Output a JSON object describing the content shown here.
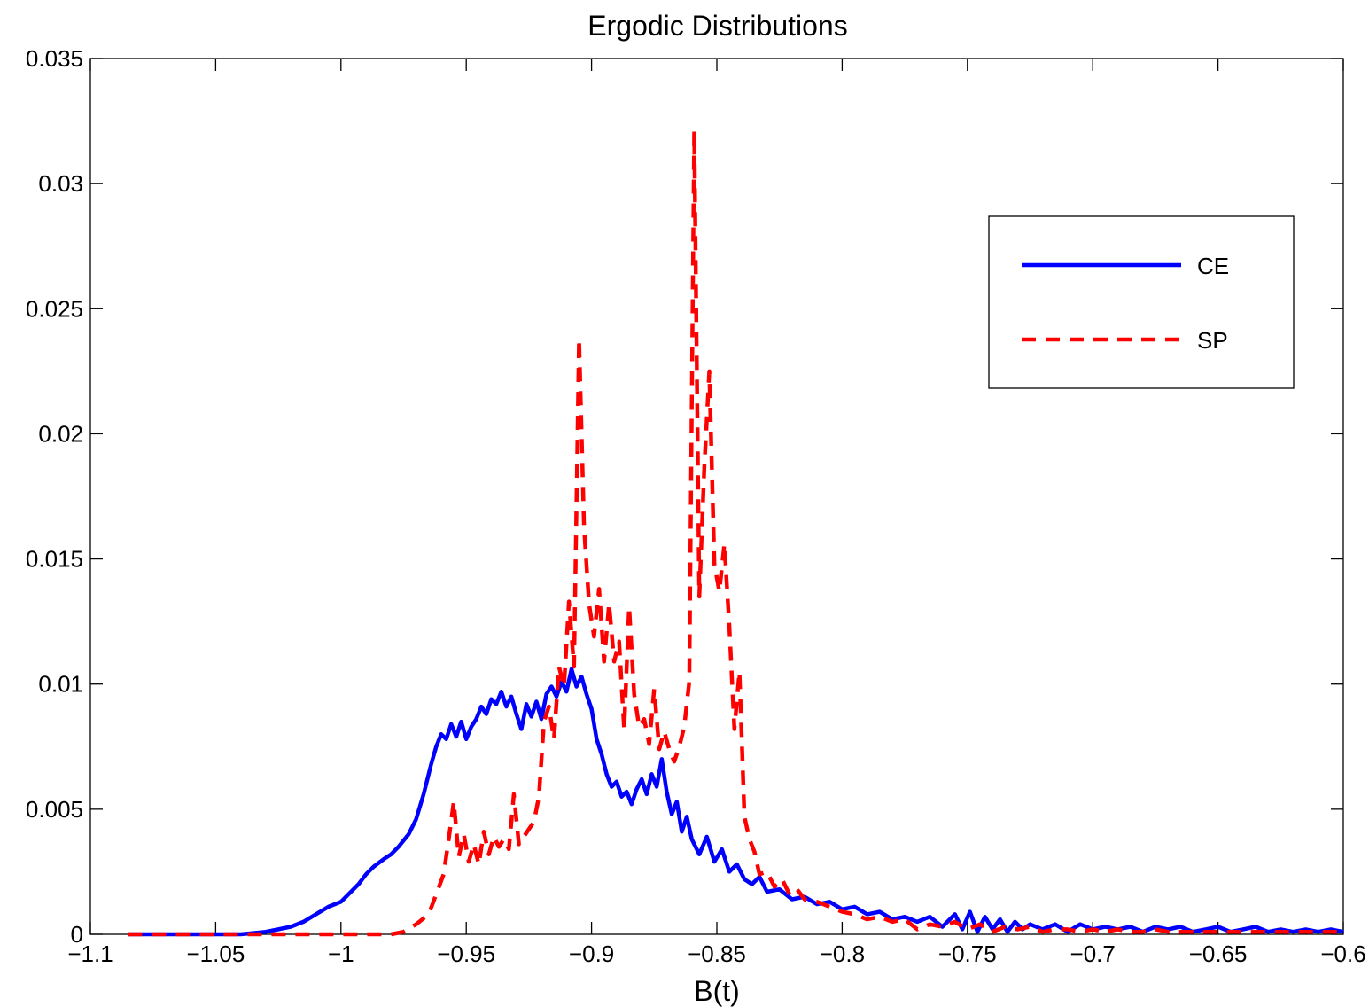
{
  "chart_data": {
    "type": "line",
    "title": "Ergodic Distributions",
    "xlabel": "B(t)",
    "ylabel": "",
    "xlim": [
      -1.1,
      -0.6
    ],
    "ylim": [
      0,
      0.035
    ],
    "xticks": [
      -1.1,
      -1.05,
      -1,
      -0.95,
      -0.9,
      -0.85,
      -0.8,
      -0.75,
      -0.7,
      -0.65,
      -0.6
    ],
    "xtick_labels": [
      "−1.1",
      "−1.05",
      "−1",
      "−0.95",
      "−0.9",
      "−0.85",
      "−0.8",
      "−0.75",
      "−0.7",
      "−0.65",
      "−0.6"
    ],
    "yticks": [
      0,
      0.005,
      0.01,
      0.015,
      0.02,
      0.025,
      0.03,
      0.035
    ],
    "ytick_labels": [
      "0",
      "0.005",
      "0.01",
      "0.015",
      "0.02",
      "0.025",
      "0.03",
      "0.035"
    ],
    "grid": false,
    "legend_position": "top-right",
    "series": [
      {
        "name": "CE",
        "color": "#0000ff",
        "style": "solid",
        "x": [
          -1.085,
          -1.06,
          -1.04,
          -1.03,
          -1.02,
          -1.015,
          -1.01,
          -1.005,
          -1.0,
          -0.997,
          -0.993,
          -0.99,
          -0.987,
          -0.983,
          -0.98,
          -0.977,
          -0.973,
          -0.97,
          -0.967,
          -0.964,
          -0.962,
          -0.96,
          -0.958,
          -0.956,
          -0.954,
          -0.952,
          -0.95,
          -0.948,
          -0.946,
          -0.944,
          -0.942,
          -0.94,
          -0.938,
          -0.936,
          -0.934,
          -0.932,
          -0.93,
          -0.928,
          -0.926,
          -0.924,
          -0.922,
          -0.92,
          -0.918,
          -0.916,
          -0.914,
          -0.912,
          -0.91,
          -0.908,
          -0.906,
          -0.904,
          -0.902,
          -0.9,
          -0.898,
          -0.896,
          -0.894,
          -0.892,
          -0.89,
          -0.888,
          -0.886,
          -0.884,
          -0.882,
          -0.88,
          -0.878,
          -0.876,
          -0.874,
          -0.872,
          -0.87,
          -0.868,
          -0.866,
          -0.864,
          -0.862,
          -0.86,
          -0.857,
          -0.854,
          -0.851,
          -0.848,
          -0.845,
          -0.842,
          -0.839,
          -0.836,
          -0.833,
          -0.83,
          -0.825,
          -0.82,
          -0.815,
          -0.81,
          -0.805,
          -0.8,
          -0.795,
          -0.79,
          -0.785,
          -0.78,
          -0.775,
          -0.77,
          -0.765,
          -0.76,
          -0.755,
          -0.752,
          -0.749,
          -0.746,
          -0.743,
          -0.74,
          -0.737,
          -0.734,
          -0.731,
          -0.728,
          -0.725,
          -0.72,
          -0.715,
          -0.71,
          -0.705,
          -0.7,
          -0.695,
          -0.69,
          -0.685,
          -0.68,
          -0.675,
          -0.67,
          -0.665,
          -0.66,
          -0.655,
          -0.65,
          -0.645,
          -0.64,
          -0.635,
          -0.63,
          -0.625,
          -0.62,
          -0.615,
          -0.61,
          -0.605,
          -0.6
        ],
        "y": [
          0.0,
          0.0,
          0.0,
          0.0001,
          0.0003,
          0.0005,
          0.0008,
          0.0011,
          0.0013,
          0.0016,
          0.002,
          0.0024,
          0.0027,
          0.003,
          0.0032,
          0.0035,
          0.004,
          0.0046,
          0.0056,
          0.0068,
          0.0075,
          0.008,
          0.0078,
          0.0084,
          0.0079,
          0.0085,
          0.0078,
          0.0083,
          0.0086,
          0.0091,
          0.0088,
          0.0094,
          0.0092,
          0.0097,
          0.0091,
          0.0095,
          0.0088,
          0.0082,
          0.0092,
          0.0087,
          0.0093,
          0.0086,
          0.0096,
          0.0099,
          0.0095,
          0.0101,
          0.0097,
          0.0106,
          0.0099,
          0.0103,
          0.0096,
          0.009,
          0.0078,
          0.0072,
          0.0064,
          0.0059,
          0.0061,
          0.0055,
          0.0057,
          0.0052,
          0.0058,
          0.0062,
          0.0056,
          0.0064,
          0.0059,
          0.007,
          0.0057,
          0.0048,
          0.0053,
          0.0041,
          0.0047,
          0.0038,
          0.0032,
          0.0039,
          0.0029,
          0.0034,
          0.0025,
          0.0028,
          0.0022,
          0.002,
          0.0023,
          0.0017,
          0.0018,
          0.0014,
          0.0015,
          0.0012,
          0.0013,
          0.001,
          0.0011,
          0.0008,
          0.0009,
          0.0006,
          0.0007,
          0.0005,
          0.0007,
          0.0003,
          0.0008,
          0.0002,
          0.0009,
          0.0001,
          0.0007,
          0.0002,
          0.0006,
          0.0001,
          0.0005,
          0.0002,
          0.0004,
          0.0002,
          0.0004,
          0.0001,
          0.0004,
          0.0002,
          0.0003,
          0.0002,
          0.0003,
          0.0001,
          0.0003,
          0.0002,
          0.0003,
          0.0001,
          0.0002,
          0.0003,
          0.0001,
          0.0002,
          0.0003,
          0.0001,
          0.0002,
          0.0001,
          0.0002,
          0.0001,
          0.0002,
          0.0001
        ]
      },
      {
        "name": "SP",
        "color": "#ff0000",
        "style": "dashed",
        "x": [
          -1.085,
          -1.05,
          -1.02,
          -1.0,
          -0.98,
          -0.975,
          -0.97,
          -0.965,
          -0.962,
          -0.959,
          -0.957,
          -0.955,
          -0.953,
          -0.951,
          -0.949,
          -0.947,
          -0.945,
          -0.943,
          -0.941,
          -0.939,
          -0.937,
          -0.935,
          -0.933,
          -0.931,
          -0.929,
          -0.927,
          -0.925,
          -0.923,
          -0.921,
          -0.919,
          -0.917,
          -0.915,
          -0.913,
          -0.911,
          -0.909,
          -0.907,
          -0.905,
          -0.903,
          -0.901,
          -0.899,
          -0.897,
          -0.895,
          -0.893,
          -0.891,
          -0.889,
          -0.887,
          -0.885,
          -0.883,
          -0.881,
          -0.879,
          -0.877,
          -0.875,
          -0.873,
          -0.871,
          -0.869,
          -0.867,
          -0.865,
          -0.863,
          -0.861,
          -0.859,
          -0.857,
          -0.855,
          -0.853,
          -0.851,
          -0.849,
          -0.847,
          -0.845,
          -0.843,
          -0.841,
          -0.839,
          -0.837,
          -0.835,
          -0.833,
          -0.83,
          -0.827,
          -0.824,
          -0.821,
          -0.818,
          -0.815,
          -0.81,
          -0.805,
          -0.8,
          -0.795,
          -0.79,
          -0.785,
          -0.78,
          -0.775,
          -0.77,
          -0.765,
          -0.76,
          -0.755,
          -0.75,
          -0.745,
          -0.74,
          -0.735,
          -0.73,
          -0.725,
          -0.72,
          -0.715,
          -0.71,
          -0.705,
          -0.7,
          -0.695,
          -0.69,
          -0.685,
          -0.68,
          -0.675,
          -0.67,
          -0.665,
          -0.66,
          -0.655,
          -0.65,
          -0.645,
          -0.64,
          -0.635,
          -0.63,
          -0.625,
          -0.62,
          -0.615,
          -0.61,
          -0.605,
          -0.6
        ],
        "y": [
          0.0,
          0.0,
          0.0,
          0.0,
          0.0,
          0.0001,
          0.0004,
          0.0008,
          0.0016,
          0.0024,
          0.0038,
          0.0053,
          0.0031,
          0.004,
          0.0029,
          0.0036,
          0.0028,
          0.0041,
          0.0032,
          0.0039,
          0.0035,
          0.0038,
          0.0034,
          0.0056,
          0.0036,
          0.0039,
          0.0042,
          0.0045,
          0.0055,
          0.0085,
          0.0091,
          0.0078,
          0.0107,
          0.0099,
          0.0133,
          0.0107,
          0.0238,
          0.0163,
          0.0132,
          0.0119,
          0.0138,
          0.0109,
          0.0132,
          0.0109,
          0.0117,
          0.0082,
          0.0131,
          0.0096,
          0.0083,
          0.0086,
          0.0076,
          0.0098,
          0.0074,
          0.0081,
          0.0074,
          0.0069,
          0.0075,
          0.0083,
          0.0101,
          0.0321,
          0.0135,
          0.0187,
          0.0225,
          0.0148,
          0.0137,
          0.0156,
          0.0123,
          0.0082,
          0.0105,
          0.0047,
          0.0038,
          0.0033,
          0.0024,
          0.0025,
          0.0019,
          0.0022,
          0.0016,
          0.0018,
          0.0014,
          0.0013,
          0.0011,
          0.0009,
          0.0008,
          0.0006,
          0.0007,
          0.0005,
          0.0006,
          0.0002,
          0.0004,
          0.0003,
          0.0005,
          0.0002,
          0.0004,
          0.0001,
          0.0003,
          0.0002,
          0.0003,
          0.0001,
          0.0002,
          0.0002,
          0.0001,
          0.0002,
          0.0001,
          0.0002,
          0.0001,
          0.0001,
          0.0002,
          0.0001,
          0.0001,
          0.0001,
          0.0001,
          0.0001,
          0.0001,
          0.0001,
          0.0001,
          0.0001,
          0.0001,
          0.0001,
          0.0001,
          0.0001,
          0.0001,
          0.0001
        ]
      }
    ]
  }
}
